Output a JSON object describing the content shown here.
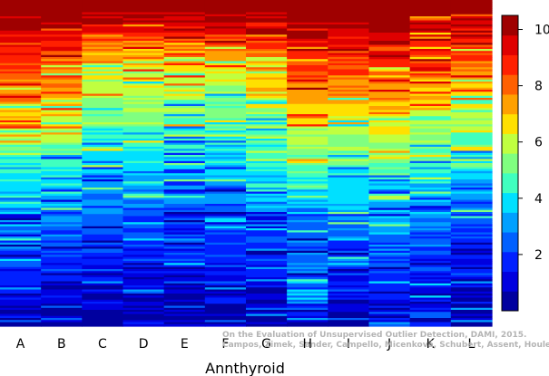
{
  "chart_data": {
    "type": "heatmap",
    "xlabel": "Annthyroid",
    "categories": [
      "A",
      "B",
      "C",
      "D",
      "E",
      "F",
      "G",
      "H",
      "I",
      "J",
      "K",
      "L"
    ],
    "colorbar": {
      "range": [
        0,
        10.5
      ],
      "ticks": [
        2,
        4,
        6,
        8,
        10
      ],
      "palette": [
        "#00009f",
        "#0000df",
        "#0020ff",
        "#0060ff",
        "#00a0ff",
        "#00e0ff",
        "#40ffbf",
        "#80ff80",
        "#c0ff40",
        "#ffe000",
        "#ffa000",
        "#ff6000",
        "#ff2000",
        "#df0000",
        "#9f0000"
      ]
    },
    "column_profiles": {
      "description_points_top_to_bottom": [
        0.0,
        0.05,
        0.1,
        0.15,
        0.2,
        0.25,
        0.3,
        0.35,
        0.4,
        0.45,
        0.5,
        0.55,
        0.6,
        0.65,
        0.7,
        0.75,
        0.8,
        0.85,
        0.9,
        0.95,
        1.0
      ],
      "A": [
        10.5,
        10.2,
        9.6,
        9.0,
        8.5,
        8.0,
        7.6,
        7.0,
        6.0,
        5.0,
        4.4,
        4.0,
        3.6,
        3.2,
        2.8,
        2.4,
        2.0,
        1.6,
        1.2,
        0.9,
        0.5
      ],
      "B": [
        10.5,
        10.2,
        9.5,
        8.8,
        8.2,
        7.6,
        7.2,
        6.6,
        5.8,
        5.0,
        4.3,
        3.9,
        3.5,
        3.1,
        2.6,
        2.2,
        1.8,
        1.5,
        1.1,
        0.8,
        0.5
      ],
      "C": [
        10.5,
        10.0,
        9.0,
        7.6,
        6.8,
        6.0,
        5.4,
        5.0,
        4.6,
        4.2,
        3.8,
        3.4,
        3.0,
        2.6,
        2.2,
        1.9,
        1.6,
        1.3,
        1.0,
        0.7,
        0.4
      ],
      "D": [
        10.5,
        10.0,
        8.8,
        7.4,
        6.8,
        6.2,
        5.6,
        5.2,
        4.8,
        4.3,
        3.9,
        3.4,
        2.9,
        2.5,
        2.1,
        1.8,
        1.5,
        1.2,
        0.9,
        0.6,
        0.4
      ],
      "E": [
        10.5,
        10.0,
        8.8,
        7.6,
        6.8,
        6.0,
        5.4,
        5.0,
        4.5,
        4.1,
        3.7,
        3.3,
        2.9,
        2.5,
        2.1,
        1.8,
        1.5,
        1.2,
        0.9,
        0.6,
        0.4
      ],
      "F": [
        10.5,
        10.1,
        9.0,
        7.6,
        6.6,
        5.8,
        5.2,
        4.8,
        4.4,
        4.0,
        3.6,
        3.2,
        2.8,
        2.4,
        2.0,
        1.7,
        1.4,
        1.1,
        0.8,
        0.6,
        0.4
      ],
      "G": [
        10.5,
        10.2,
        9.4,
        8.4,
        7.6,
        7.0,
        6.4,
        5.8,
        5.2,
        4.6,
        4.2,
        3.7,
        3.3,
        2.8,
        2.4,
        2.0,
        1.7,
        1.4,
        1.0,
        0.7,
        0.5
      ],
      "H": [
        10.5,
        10.2,
        9.6,
        9.0,
        8.4,
        7.8,
        7.2,
        6.6,
        6.0,
        5.4,
        4.8,
        4.2,
        3.6,
        3.0,
        2.6,
        2.4,
        2.4,
        2.8,
        3.4,
        2.0,
        0.6
      ],
      "I": [
        10.5,
        10.2,
        9.6,
        9.0,
        8.4,
        7.8,
        7.2,
        6.6,
        6.0,
        5.4,
        4.8,
        4.3,
        3.8,
        3.3,
        2.8,
        2.3,
        1.9,
        1.5,
        1.1,
        0.8,
        0.5
      ],
      "J": [
        10.5,
        10.2,
        9.8,
        9.2,
        8.6,
        8.0,
        7.4,
        6.8,
        6.2,
        5.6,
        5.0,
        4.5,
        4.0,
        3.5,
        3.0,
        2.6,
        2.2,
        1.8,
        1.4,
        1.0,
        0.6
      ],
      "K": [
        10.5,
        10.2,
        9.6,
        8.8,
        8.0,
        7.4,
        6.8,
        6.2,
        5.6,
        5.0,
        4.4,
        3.9,
        3.4,
        3.0,
        2.6,
        2.2,
        1.9,
        1.5,
        1.1,
        0.8,
        0.5
      ],
      "L": [
        10.5,
        10.0,
        9.4,
        8.6,
        7.8,
        7.0,
        6.4,
        5.8,
        5.2,
        4.6,
        4.0,
        3.5,
        3.0,
        2.6,
        2.2,
        1.8,
        1.5,
        1.2,
        0.9,
        0.6,
        0.4
      ]
    },
    "stripe_rows": 160,
    "noise_amplitude": 1.6,
    "grid": false
  },
  "watermark": {
    "line1": "On the Evaluation of Unsupervised Outlier Detection, DAMI, 2015.",
    "line2": "Campos, Zimek, Sander, Campello, Micenková, Schubert, Assent, Houle"
  }
}
